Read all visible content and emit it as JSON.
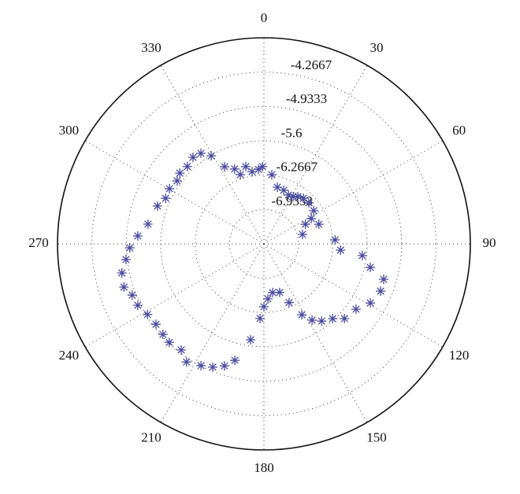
{
  "chart_data": {
    "type": "polar",
    "theta": [
      359,
      6.5,
      13.3,
      20.2,
      26.6,
      31.7,
      35.6,
      40.8,
      47.6,
      56.3,
      61.9,
      64.7,
      76.2,
      70.3,
      86.8,
      94.7,
      96.8,
      102.5,
      106.5,
      112.1,
      119.1,
      125.4,
      132.9,
      137.5,
      143.3,
      147.8,
      151.9,
      156.9,
      162.1,
      170,
      175.9,
      180,
      183,
      187.9,
      194,
      197.9,
      202.5,
      207.3,
      213.2,
      217.9,
      223.8,
      228.1,
      233.3,
      238.7,
      244,
      248.7,
      252.8,
      258.4,
      263.5,
      268.3,
      273.6,
      279.7,
      289.6,
      294.9,
      300.3,
      306,
      310.1,
      315.3,
      320.7,
      325.2,
      329.1,
      333,
      338.7,
      341.2,
      346.8,
      350.7,
      355.8
    ],
    "values": [
      -6.1,
      -6.25,
      -6.47,
      -6.49,
      -6.54,
      -6.52,
      -6.47,
      -6.43,
      -6.42,
      -6.44,
      -6.56,
      -6.71,
      -6.83,
      -6.47,
      -6.22,
      -6.11,
      -5.68,
      -5.49,
      -5.18,
      -5.16,
      -5.24,
      -5.41,
      -5.47,
      -5.63,
      -5.73,
      -5.85,
      -6.04,
      -6.36,
      -6.61,
      -6.64,
      -6.53,
      -6.38,
      -6.15,
      -5.72,
      -5.27,
      -5.11,
      -5.01,
      -4.94,
      -4.86,
      -4.99,
      -4.95,
      -4.97,
      -4.99,
      -4.96,
      -4.88,
      -4.86,
      -4.76,
      -4.79,
      -4.91,
      -5.0,
      -5.15,
      -5.32,
      -5.41,
      -5.5,
      -5.48,
      -5.52,
      -5.47,
      -5.49,
      -5.43,
      -5.46,
      -5.61,
      -5.92,
      -6.04,
      -6.18,
      -6.06,
      -6.18,
      -6.15
    ],
    "color": "#4b4ba0",
    "rlim": [
      -7.6,
      -3.6
    ],
    "rticks": [
      -6.9333,
      -6.2667,
      -5.6,
      -4.9333,
      -4.2667
    ],
    "thetaticks": [
      0,
      30,
      60,
      90,
      120,
      150,
      180,
      210,
      240,
      270,
      300,
      330
    ],
    "grid": true
  }
}
